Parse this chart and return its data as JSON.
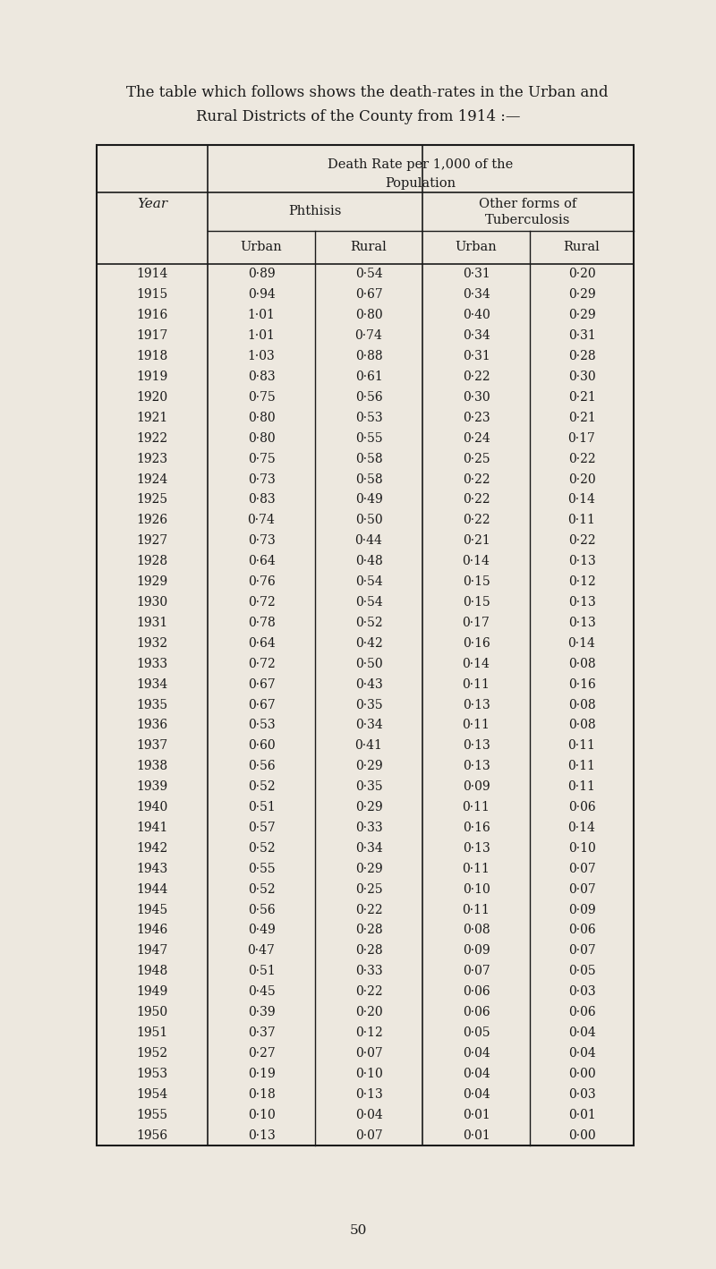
{
  "intro_line1": "    The table which follows shows the death-rates in the Urban and",
  "intro_line2": "Rural Districts of the County from 1914 :—",
  "page_number": "50",
  "background_color": "#ede8df",
  "text_color": "#1a1a1a",
  "years": [
    1914,
    1915,
    1916,
    1917,
    1918,
    1919,
    1920,
    1921,
    1922,
    1923,
    1924,
    1925,
    1926,
    1927,
    1928,
    1929,
    1930,
    1931,
    1932,
    1933,
    1934,
    1935,
    1936,
    1937,
    1938,
    1939,
    1940,
    1941,
    1942,
    1943,
    1944,
    1945,
    1946,
    1947,
    1948,
    1949,
    1950,
    1951,
    1952,
    1953,
    1954,
    1955,
    1956
  ],
  "phthisis_urban": [
    "0·89",
    "0·94",
    "1·01",
    "1·01",
    "1·03",
    "0·83",
    "0·75",
    "0·80",
    "0·80",
    "0·75",
    "0·73",
    "0·83",
    "0·74",
    "0·73",
    "0·64",
    "0·76",
    "0·72",
    "0·78",
    "0·64",
    "0·72",
    "0·67",
    "0·67",
    "0·53",
    "0·60",
    "0·56",
    "0·52",
    "0·51",
    "0·57",
    "0·52",
    "0·55",
    "0·52",
    "0·56",
    "0·49",
    "0·47",
    "0·51",
    "0·45",
    "0·39",
    "0·37",
    "0·27",
    "0·19",
    "0·18",
    "0·10",
    "0·13"
  ],
  "phthisis_rural": [
    "0·54",
    "0·67",
    "0·80",
    "0·74",
    "0·88",
    "0·61",
    "0·56",
    "0·53",
    "0·55",
    "0·58",
    "0·58",
    "0·49",
    "0·50",
    "0·44",
    "0·48",
    "0·54",
    "0·54",
    "0·52",
    "0·42",
    "0·50",
    "0·43",
    "0·35",
    "0·34",
    "0·41",
    "0·29",
    "0·35",
    "0·29",
    "0·33",
    "0·34",
    "0·29",
    "0·25",
    "0·22",
    "0·28",
    "0·28",
    "0·33",
    "0·22",
    "0·20",
    "0·12",
    "0·07",
    "0·10",
    "0·13",
    "0·04",
    "0·07"
  ],
  "other_urban": [
    "0·31",
    "0·34",
    "0·40",
    "0·34",
    "0·31",
    "0·22",
    "0·30",
    "0·23",
    "0·24",
    "0·25",
    "0·22",
    "0·22",
    "0·22",
    "0·21",
    "0·14",
    "0·15",
    "0·15",
    "0·17",
    "0·16",
    "0·14",
    "0·11",
    "0·13",
    "0·11",
    "0·13",
    "0·13",
    "0·09",
    "0·11",
    "0·16",
    "0·13",
    "0·11",
    "0·10",
    "0·11",
    "0·08",
    "0·09",
    "0·07",
    "0·06",
    "0·06",
    "0·05",
    "0·04",
    "0·04",
    "0·04",
    "0·01",
    "0·01"
  ],
  "other_rural": [
    "0·20",
    "0·29",
    "0·29",
    "0·31",
    "0·28",
    "0·30",
    "0·21",
    "0·21",
    "0·17",
    "0·22",
    "0·20",
    "0·14",
    "0·11",
    "0·22",
    "0·13",
    "0·12",
    "0·13",
    "0·13",
    "0·14",
    "0·08",
    "0·16",
    "0·08",
    "0·08",
    "0·11",
    "0·11",
    "0·11",
    "0·06",
    "0·14",
    "0·10",
    "0·07",
    "0·07",
    "0·09",
    "0·06",
    "0·07",
    "0·05",
    "0·03",
    "0·06",
    "0·04",
    "0·04",
    "0·00",
    "0·03",
    "0·01",
    "0·00"
  ]
}
